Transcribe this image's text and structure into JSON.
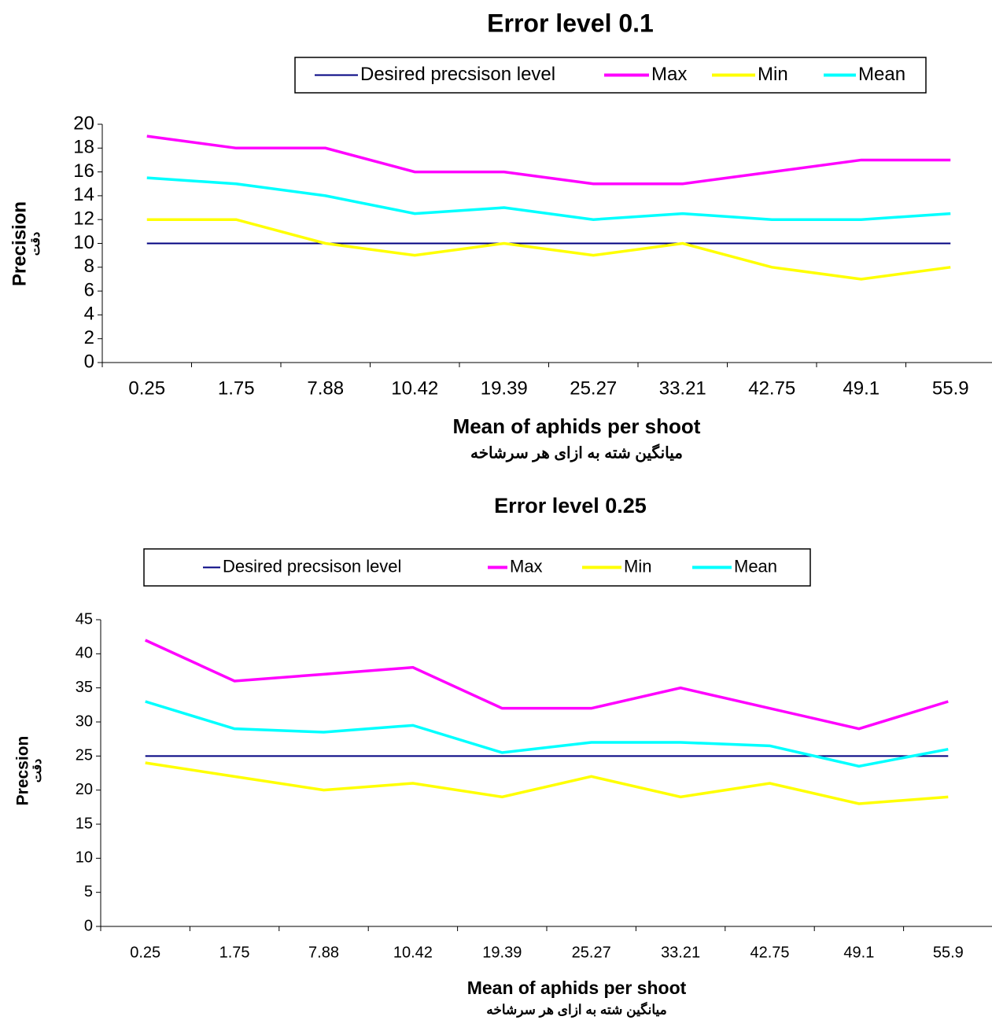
{
  "chart_data": [
    {
      "type": "line",
      "title": "Error level 0.1",
      "x_label": "Mean of aphids per shoot",
      "x_label_2": "میانگین شته به ازای هر سرشاخه",
      "y_label": "Precision",
      "y_label_2": "دقت",
      "categories": [
        "0.25",
        "1.75",
        "7.88",
        "10.42",
        "19.39",
        "25.27",
        "33.21",
        "42.75",
        "49.1",
        "55.9"
      ],
      "series": [
        {
          "name": "Desired precsison level",
          "color": "#000080",
          "values": [
            10,
            10,
            10,
            10,
            10,
            10,
            10,
            10,
            10,
            10
          ]
        },
        {
          "name": "Max",
          "color": "#ff00ff",
          "values": [
            19,
            18,
            18,
            16,
            16,
            15,
            15,
            16,
            17,
            17
          ]
        },
        {
          "name": "Min",
          "color": "#ffff00",
          "values": [
            12,
            12,
            10,
            9,
            10,
            9,
            10,
            8,
            7,
            8
          ]
        },
        {
          "name": "Mean",
          "color": "#00ffff",
          "values": [
            15.5,
            15,
            14,
            12.5,
            13,
            12,
            12.5,
            12,
            12,
            12.5
          ]
        }
      ],
      "ylim": [
        0,
        20
      ],
      "yticks": [
        0,
        2,
        4,
        6,
        8,
        10,
        12,
        14,
        16,
        18,
        20
      ],
      "grid": false,
      "legend": "top"
    },
    {
      "type": "line",
      "title": "Error level 0.25",
      "x_label": "Mean of aphids per shoot",
      "x_label_2": "میانگین شته به ازای هر سرشاخه",
      "y_label": "Precsion",
      "y_label_2": "دقت",
      "categories": [
        "0.25",
        "1.75",
        "7.88",
        "10.42",
        "19.39",
        "25.27",
        "33.21",
        "42.75",
        "49.1",
        "55.9"
      ],
      "series": [
        {
          "name": "Desired precsison level",
          "color": "#000080",
          "values": [
            25,
            25,
            25,
            25,
            25,
            25,
            25,
            25,
            25,
            25
          ]
        },
        {
          "name": "Max",
          "color": "#ff00ff",
          "values": [
            42,
            36,
            37,
            38,
            32,
            32,
            35,
            32,
            29,
            33
          ]
        },
        {
          "name": "Min",
          "color": "#ffff00",
          "values": [
            24,
            22,
            20,
            21,
            19,
            22,
            19,
            21,
            18,
            19
          ]
        },
        {
          "name": "Mean",
          "color": "#00ffff",
          "values": [
            33,
            29,
            28.5,
            29.5,
            25.5,
            27,
            27,
            26.5,
            23.5,
            26
          ]
        }
      ],
      "ylim": [
        0,
        45
      ],
      "yticks": [
        0,
        5,
        10,
        15,
        20,
        25,
        30,
        35,
        40,
        45
      ],
      "grid": false,
      "legend": "top"
    }
  ]
}
